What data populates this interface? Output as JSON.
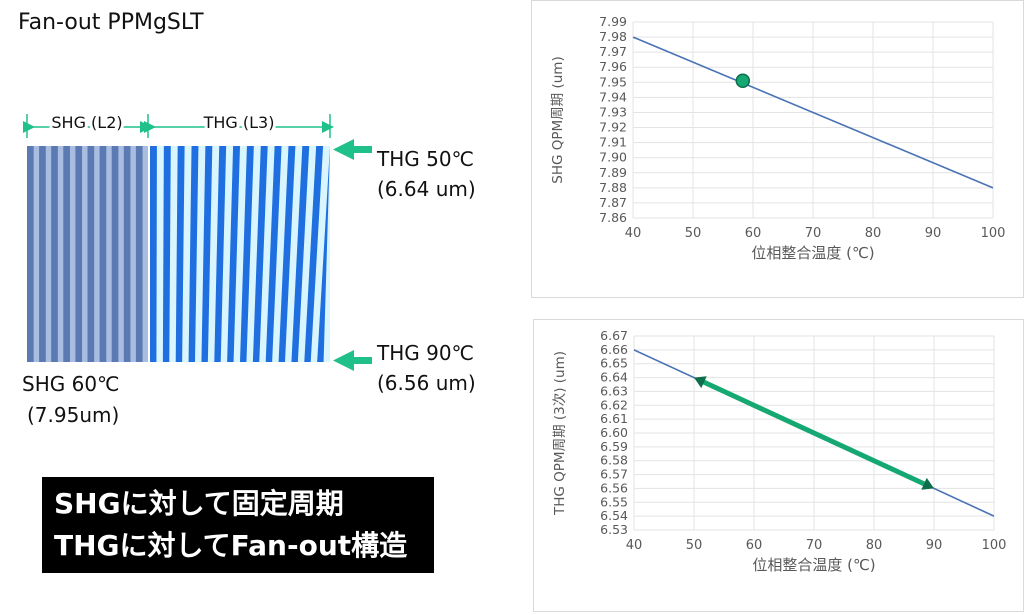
{
  "title": "Fan-out PPMgSLT",
  "diagram": {
    "shg_label": "SHG (L2)",
    "thg_label": "THG (L3)",
    "thg50_line1": "THG 50℃",
    "thg50_line2": "(6.64 um)",
    "thg90_line1": "THG 90℃",
    "thg90_line2": "(6.56 um)",
    "shg60_line1": "SHG 60℃",
    "shg60_line2": "(7.95um)",
    "arrow_color": "#1fc089",
    "shg_stripe_dark": "#5b79b3",
    "shg_stripe_light": "#a9bde0",
    "thg_stripe_dark": "#1f6fe0",
    "thg_stripe_light": "#d9f6ff"
  },
  "note": {
    "line1": "SHGに対して固定周期",
    "line2": "THGに対してFan-out構造"
  },
  "chart_data": [
    {
      "type": "line",
      "ylabel": "SHG QPM周期 (um)",
      "xlabel": "位相整合温度 (℃)",
      "xlim": [
        40,
        100
      ],
      "ylim": [
        7.86,
        7.99
      ],
      "x_ticks": [
        40,
        50,
        60,
        70,
        80,
        90,
        100
      ],
      "y_ticks": [
        7.86,
        7.87,
        7.88,
        7.89,
        7.9,
        7.91,
        7.92,
        7.93,
        7.94,
        7.95,
        7.96,
        7.97,
        7.98,
        7.99
      ],
      "y_decimals": 2,
      "grid": true,
      "series": [
        {
          "x": [
            40,
            100
          ],
          "y": [
            7.98,
            7.88
          ]
        }
      ],
      "marker": {
        "x": 58.3,
        "y": 7.951
      },
      "line_color": "#4a73b5",
      "accent_color": "#16a873"
    },
    {
      "type": "line",
      "ylabel": "THG QPM周期 (3次) (um)",
      "xlabel": "位相整合温度 (℃)",
      "xlim": [
        40,
        100
      ],
      "ylim": [
        6.53,
        6.67
      ],
      "x_ticks": [
        40,
        50,
        60,
        70,
        80,
        90,
        100
      ],
      "y_ticks": [
        6.53,
        6.54,
        6.55,
        6.56,
        6.57,
        6.58,
        6.59,
        6.6,
        6.61,
        6.62,
        6.63,
        6.64,
        6.65,
        6.66,
        6.67
      ],
      "y_decimals": 2,
      "grid": true,
      "series": [
        {
          "x": [
            40,
            100
          ],
          "y": [
            6.66,
            6.54
          ]
        }
      ],
      "range_arrow": {
        "x1": 50,
        "y1": 6.64,
        "x2": 90,
        "y2": 6.56
      },
      "line_color": "#4a73b5",
      "accent_color": "#16a873"
    }
  ]
}
